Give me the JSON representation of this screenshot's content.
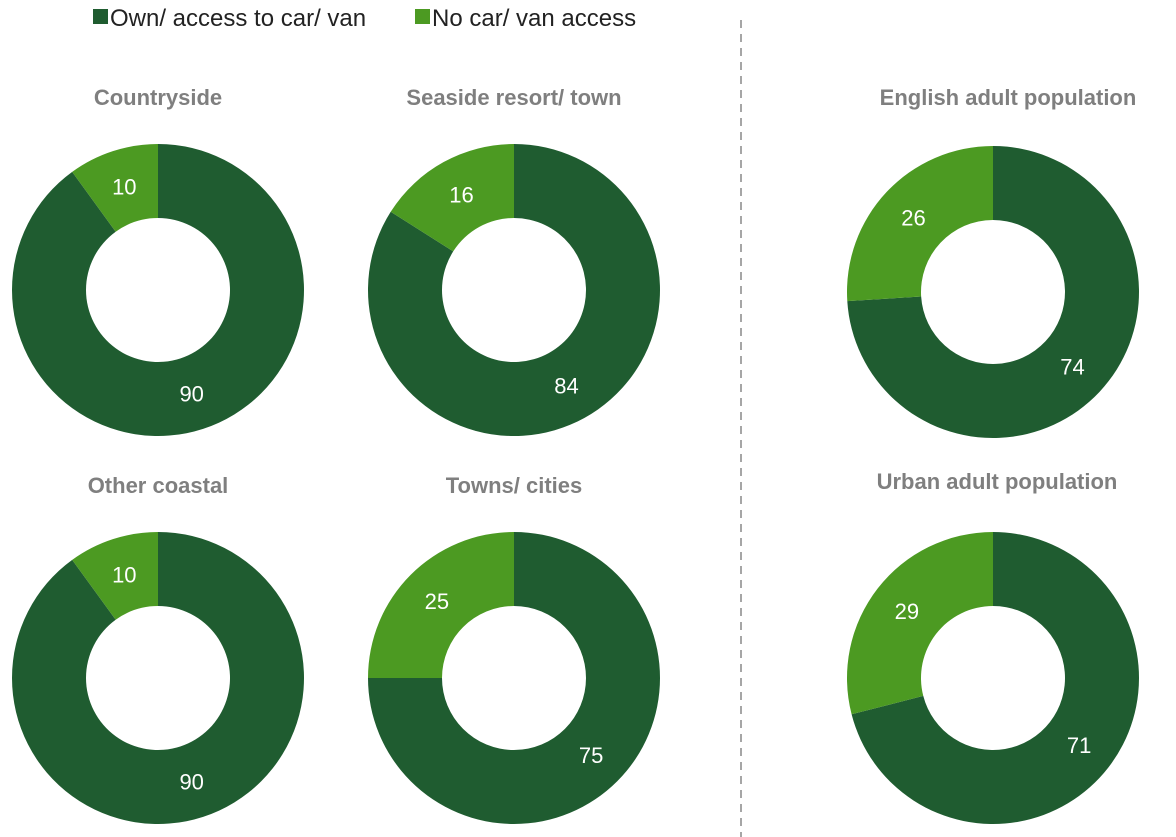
{
  "colors": {
    "own": "#1f5c30",
    "no_access": "#4c9a22",
    "divider": "#a6a6a6",
    "title": "#7f7f7f"
  },
  "legend": {
    "own_label": "Own/ access to car/ van",
    "no_access_label": "No car/ van access"
  },
  "chart_data": [
    {
      "type": "pie",
      "title": "Countryside",
      "series": [
        {
          "name": "Own/ access to car/ van",
          "value": 90
        },
        {
          "name": "No car/ van access",
          "value": 10
        }
      ]
    },
    {
      "type": "pie",
      "title": "Seaside resort/ town",
      "series": [
        {
          "name": "Own/ access to car/ van",
          "value": 84
        },
        {
          "name": "No car/ van access",
          "value": 16
        }
      ]
    },
    {
      "type": "pie",
      "title": "Other coastal",
      "series": [
        {
          "name": "Own/ access to car/ van",
          "value": 90
        },
        {
          "name": "No car/ van access",
          "value": 10
        }
      ]
    },
    {
      "type": "pie",
      "title": "Towns/ cities",
      "series": [
        {
          "name": "Own/ access to car/ van",
          "value": 75
        },
        {
          "name": "No car/ van access",
          "value": 25
        }
      ]
    },
    {
      "type": "pie",
      "title": "English adult population",
      "series": [
        {
          "name": "Own/ access to car/ van",
          "value": 74
        },
        {
          "name": "No car/ van access",
          "value": 26
        }
      ]
    },
    {
      "type": "pie",
      "title": "Urban adult population",
      "series": [
        {
          "name": "Own/ access to car/ van",
          "value": 71
        },
        {
          "name": "No car/ van access",
          "value": 29
        }
      ]
    }
  ]
}
